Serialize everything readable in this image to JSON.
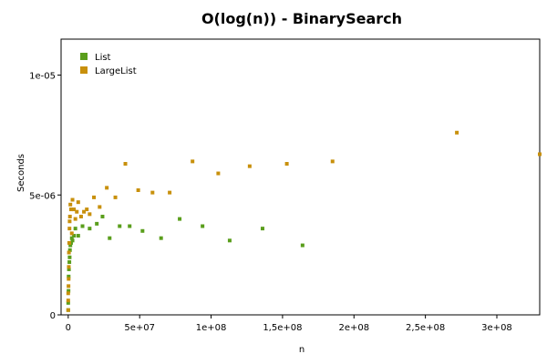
{
  "chart_data": {
    "type": "scatter",
    "title": "O(log(n)) - BinarySearch",
    "xlabel": "n",
    "ylabel": "Seconds",
    "xlim": [
      -5000000,
      330000000
    ],
    "ylim": [
      0,
      1.15e-05
    ],
    "x_ticks": [
      {
        "value": 0,
        "label": "0"
      },
      {
        "value": 50000000,
        "label": "5e+07"
      },
      {
        "value": 100000000,
        "label": "1e+08"
      },
      {
        "value": 150000000,
        "label": "1,5e+08"
      },
      {
        "value": 200000000,
        "label": "2e+08"
      },
      {
        "value": 250000000,
        "label": "2,5e+08"
      },
      {
        "value": 300000000,
        "label": "3e+08"
      }
    ],
    "y_ticks": [
      {
        "value": 0,
        "label": "0"
      },
      {
        "value": 5e-06,
        "label": "5e-06"
      },
      {
        "value": 1e-05,
        "label": "1e-05"
      }
    ],
    "grid": false,
    "legend_position": "top-left",
    "series": [
      {
        "name": "List",
        "color": "#5a9e1c",
        "points": [
          [
            0,
            2e-07
          ],
          [
            0,
            5e-07
          ],
          [
            200000,
            1e-06
          ],
          [
            300000,
            1.6e-06
          ],
          [
            500000,
            1.9e-06
          ],
          [
            800000,
            2.2e-06
          ],
          [
            1000000,
            2.4e-06
          ],
          [
            1200000,
            2.7e-06
          ],
          [
            1500000,
            2.9e-06
          ],
          [
            2000000,
            3e-06
          ],
          [
            2500000,
            3.2e-06
          ],
          [
            3000000,
            3.1e-06
          ],
          [
            4000000,
            3.3e-06
          ],
          [
            5000000,
            3.6e-06
          ],
          [
            7000000,
            3.3e-06
          ],
          [
            10000000,
            3.7e-06
          ],
          [
            15000000,
            3.6e-06
          ],
          [
            20000000,
            3.8e-06
          ],
          [
            24000000,
            4.1e-06
          ],
          [
            29000000,
            3.2e-06
          ],
          [
            36000000,
            3.7e-06
          ],
          [
            43000000,
            3.7e-06
          ],
          [
            52000000,
            3.5e-06
          ],
          [
            65000000,
            3.2e-06
          ],
          [
            78000000,
            4e-06
          ],
          [
            94000000,
            3.7e-06
          ],
          [
            113000000,
            3.1e-06
          ],
          [
            136000000,
            3.6e-06
          ],
          [
            164000000,
            2.9e-06
          ]
        ]
      },
      {
        "name": "LargeList",
        "color": "#c8900c",
        "points": [
          [
            0,
            2e-07
          ],
          [
            0,
            6e-07
          ],
          [
            0,
            9e-07
          ],
          [
            200000,
            1.2e-06
          ],
          [
            300000,
            1.5e-06
          ],
          [
            400000,
            2e-06
          ],
          [
            500000,
            2.6e-06
          ],
          [
            700000,
            3e-06
          ],
          [
            900000,
            3.6e-06
          ],
          [
            1000000,
            3.9e-06
          ],
          [
            1200000,
            4.1e-06
          ],
          [
            1500000,
            4.6e-06
          ],
          [
            2000000,
            4.4e-06
          ],
          [
            2500000,
            3.4e-06
          ],
          [
            3000000,
            4.8e-06
          ],
          [
            4000000,
            4.4e-06
          ],
          [
            5000000,
            4e-06
          ],
          [
            6000000,
            4.3e-06
          ],
          [
            7000000,
            4.7e-06
          ],
          [
            9000000,
            4.1e-06
          ],
          [
            11000000,
            4.3e-06
          ],
          [
            13000000,
            4.4e-06
          ],
          [
            15000000,
            4.2e-06
          ],
          [
            18000000,
            4.9e-06
          ],
          [
            22000000,
            4.5e-06
          ],
          [
            27000000,
            5.3e-06
          ],
          [
            33000000,
            4.9e-06
          ],
          [
            40000000,
            6.3e-06
          ],
          [
            49000000,
            5.2e-06
          ],
          [
            59000000,
            5.1e-06
          ],
          [
            71000000,
            5.1e-06
          ],
          [
            87000000,
            6.4e-06
          ],
          [
            105000000,
            5.9e-06
          ],
          [
            127000000,
            6.2e-06
          ],
          [
            153000000,
            6.3e-06
          ],
          [
            185000000,
            6.4e-06
          ],
          [
            272000000,
            7.6e-06
          ],
          [
            330000000,
            6.7e-06
          ]
        ]
      }
    ]
  }
}
